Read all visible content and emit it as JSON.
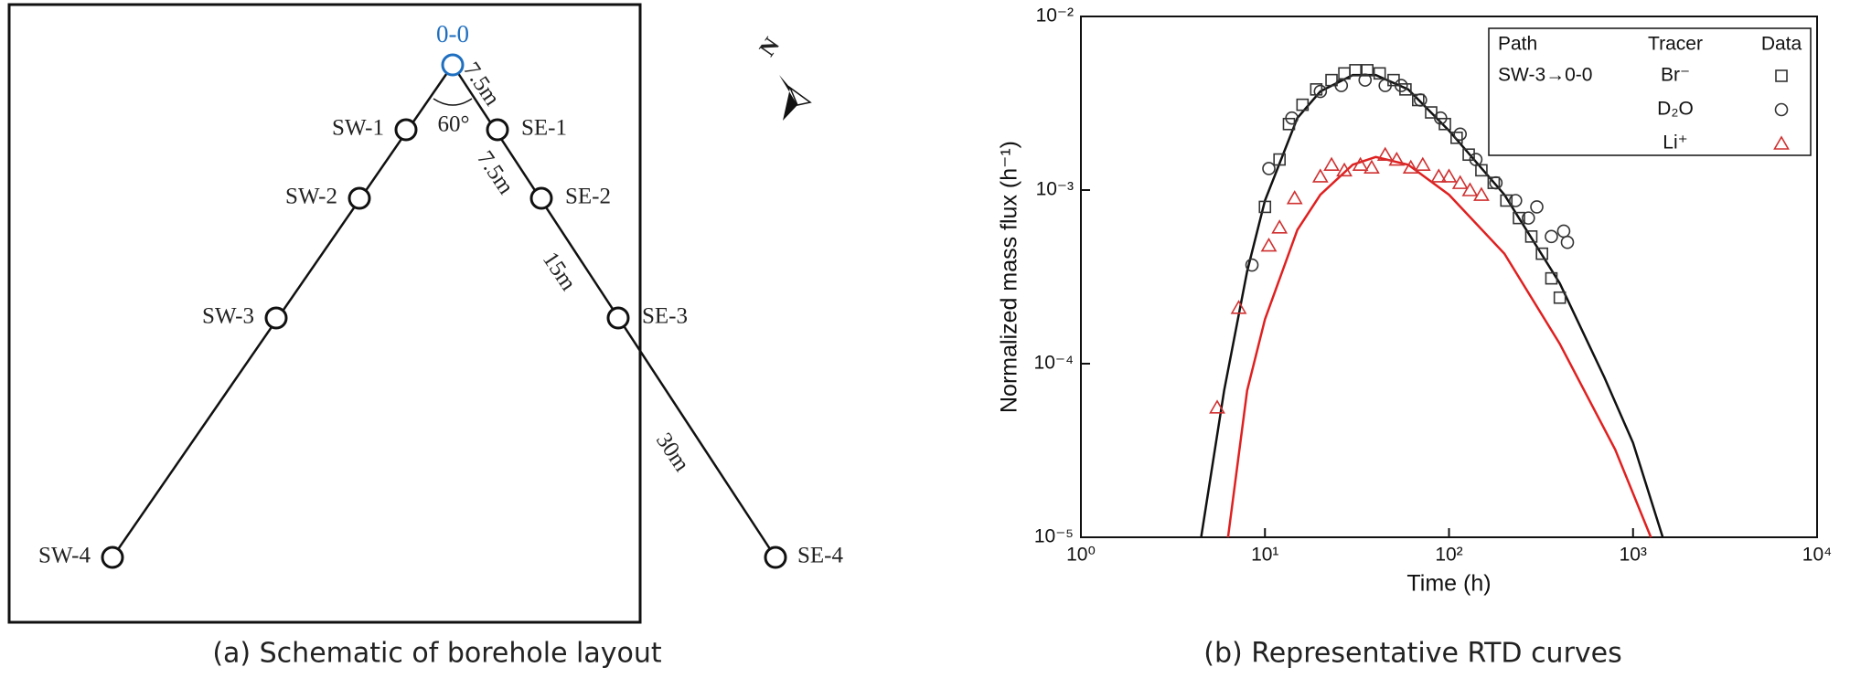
{
  "diagram": {
    "nodes": [
      {
        "label": "0-0"
      },
      {
        "label": "SW-1"
      },
      {
        "label": "SE-1"
      },
      {
        "label": "SW-2"
      },
      {
        "label": "SE-2"
      },
      {
        "label": "SW-3"
      },
      {
        "label": "SE-3"
      },
      {
        "label": "SW-4"
      },
      {
        "label": "SE-4"
      }
    ],
    "edge_labels": [
      "7.5m",
      "7.5m",
      "15m",
      "30m"
    ],
    "angle_label": "60°",
    "north_label": "N",
    "caption": "(a) Schematic of borehole layout"
  },
  "chart_data": {
    "type": "scatter",
    "caption": "(b) Representative RTD curves",
    "xlabel": "Time (h)",
    "ylabel": "Normalized mass flux (h⁻¹)",
    "xscale": "log",
    "yscale": "log",
    "xlim": [
      1,
      10000
    ],
    "ylim": [
      1e-05,
      0.01
    ],
    "xticks": [
      {
        "value": 1,
        "label": "10⁰"
      },
      {
        "value": 10,
        "label": "10¹"
      },
      {
        "value": 100,
        "label": "10²"
      },
      {
        "value": 1000,
        "label": "10³"
      },
      {
        "value": 10000,
        "label": "10⁴"
      }
    ],
    "yticks": [
      {
        "value": 1e-05,
        "label": "10⁻⁵"
      },
      {
        "value": 0.0001,
        "label": "10⁻⁴"
      },
      {
        "value": 0.001,
        "label": "10⁻³"
      },
      {
        "value": 0.01,
        "label": "10⁻²"
      }
    ],
    "legend": {
      "headers": [
        "Path",
        "Tracer",
        "Data"
      ],
      "path": "SW-3→0-0",
      "corner": "upper right"
    },
    "series": [
      {
        "name": "Br⁻",
        "color": "#333333",
        "marker": "square",
        "x": [
          10,
          12,
          13.5,
          16,
          19,
          23,
          27,
          31,
          36,
          42,
          50,
          58,
          68,
          80,
          95,
          110,
          128,
          150,
          175,
          205,
          240,
          280,
          320,
          360,
          400
        ],
        "values": [
          0.0008,
          0.0015,
          0.0024,
          0.0031,
          0.0038,
          0.0043,
          0.0047,
          0.0049,
          0.0049,
          0.0047,
          0.0043,
          0.0038,
          0.0033,
          0.0028,
          0.0024,
          0.002,
          0.0016,
          0.0013,
          0.0011,
          0.00087,
          0.00069,
          0.00054,
          0.00043,
          0.00031,
          0.00024
        ]
      },
      {
        "name": "D₂O",
        "color": "#333333",
        "marker": "circle",
        "x": [
          8.5,
          10.5,
          14,
          20,
          26,
          35,
          45,
          55,
          70,
          90,
          115,
          140,
          180,
          230,
          270,
          300,
          360,
          420,
          440
        ],
        "values": [
          0.00037,
          0.00133,
          0.0026,
          0.0037,
          0.004,
          0.0043,
          0.004,
          0.004,
          0.0033,
          0.0026,
          0.0021,
          0.0015,
          0.0011,
          0.00087,
          0.00069,
          0.0008,
          0.00054,
          0.00058,
          0.0005
        ]
      },
      {
        "name": "Li⁺",
        "color": "#d03030",
        "marker": "triangle",
        "x": [
          5.5,
          7.2,
          10.5,
          12,
          14.5,
          20,
          23,
          27,
          33,
          38,
          45,
          52,
          62,
          72,
          88,
          100,
          115,
          130,
          150
        ],
        "values": [
          5.6e-05,
          0.00021,
          0.00048,
          0.00061,
          0.0009,
          0.0012,
          0.0014,
          0.0013,
          0.0014,
          0.00135,
          0.0016,
          0.0015,
          0.00135,
          0.0014,
          0.0012,
          0.0012,
          0.0011,
          0.001,
          0.00094
        ]
      }
    ],
    "curves": [
      {
        "color": "#111111",
        "x": [
          4.5,
          6,
          8,
          10,
          15,
          20,
          30,
          40,
          60,
          100,
          200,
          400,
          700,
          1000,
          1450
        ],
        "values": [
          1e-05,
          7e-05,
          0.00034,
          0.00087,
          0.0026,
          0.0037,
          0.0046,
          0.0046,
          0.0038,
          0.0022,
          0.00094,
          0.00029,
          8.3e-05,
          3.5e-05,
          1e-05
        ]
      },
      {
        "color": "#e02020",
        "x": [
          6.3,
          8,
          10,
          15,
          20,
          30,
          40,
          60,
          100,
          200,
          400,
          800,
          1250
        ],
        "values": [
          1e-05,
          7e-05,
          0.00018,
          0.00059,
          0.00094,
          0.0014,
          0.00155,
          0.0014,
          0.00094,
          0.00043,
          0.00013,
          3.2e-05,
          1e-05
        ]
      }
    ]
  }
}
